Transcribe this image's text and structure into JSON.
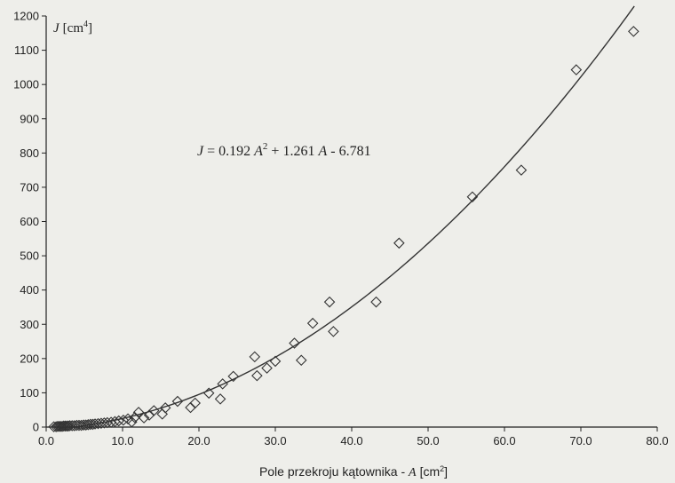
{
  "chart_data": {
    "type": "scatter",
    "title": "",
    "ylabel": {
      "symbol": "J",
      "unit": "[cm",
      "unit_sup": "4",
      "unit_close": "]"
    },
    "xlabel": {
      "text": "Pole przekroju kątownika - ",
      "symbol": "A",
      "unit": "[cm",
      "unit_sup": "2",
      "unit_close": "]"
    },
    "equation": {
      "lhs": "J",
      "eq1": " = 0.192 ",
      "a1": "A",
      "sup": "2",
      "mid": " + 1.261 ",
      "a2": "A",
      "tail": " - 6.781"
    },
    "fit": {
      "a": 0.192,
      "b": 1.261,
      "c": -6.781,
      "x_range": [
        1.0,
        77.0
      ]
    },
    "xlim": [
      0,
      80
    ],
    "ylim": [
      0,
      1200
    ],
    "xticks": [
      0,
      10,
      20,
      30,
      40,
      50,
      60,
      70,
      80
    ],
    "xtick_labels": [
      "0.0",
      "10.0",
      "20.0",
      "30.0",
      "40.0",
      "50.0",
      "60.0",
      "70.0",
      "80.0"
    ],
    "yticks": [
      0,
      100,
      200,
      300,
      400,
      500,
      600,
      700,
      800,
      900,
      1000,
      1100,
      1200
    ],
    "ytick_labels": [
      "0",
      "100",
      "200",
      "300",
      "400",
      "500",
      "600",
      "700",
      "800",
      "900",
      "1000",
      "1100",
      "1200"
    ],
    "grid": false,
    "marker": "diamond-open",
    "colors": {
      "line": "#333333",
      "marker": "#333333",
      "background": "#eeeeea"
    },
    "points": [
      [
        1.0,
        1
      ],
      [
        1.3,
        1
      ],
      [
        1.5,
        2
      ],
      [
        1.7,
        2
      ],
      [
        1.9,
        2
      ],
      [
        2.1,
        2
      ],
      [
        2.3,
        3
      ],
      [
        2.5,
        3
      ],
      [
        2.7,
        3
      ],
      [
        2.9,
        3
      ],
      [
        3.1,
        4
      ],
      [
        3.4,
        4
      ],
      [
        3.7,
        4
      ],
      [
        4.0,
        5
      ],
      [
        4.3,
        5
      ],
      [
        4.6,
        5
      ],
      [
        4.9,
        6
      ],
      [
        5.2,
        6
      ],
      [
        5.5,
        7
      ],
      [
        5.8,
        8
      ],
      [
        6.1,
        8
      ],
      [
        6.4,
        9
      ],
      [
        6.8,
        10
      ],
      [
        7.2,
        11
      ],
      [
        7.6,
        12
      ],
      [
        8.0,
        13
      ],
      [
        8.5,
        14
      ],
      [
        9.0,
        16
      ],
      [
        9.5,
        18
      ],
      [
        10.1,
        20
      ],
      [
        10.7,
        24
      ],
      [
        11.2,
        15
      ],
      [
        11.6,
        28
      ],
      [
        12.1,
        43
      ],
      [
        12.8,
        27
      ],
      [
        13.5,
        35
      ],
      [
        14.1,
        48
      ],
      [
        15.2,
        38
      ],
      [
        15.6,
        56
      ],
      [
        17.2,
        75
      ],
      [
        18.9,
        57
      ],
      [
        19.5,
        70
      ],
      [
        21.3,
        99
      ],
      [
        22.8,
        82
      ],
      [
        23.1,
        126
      ],
      [
        24.5,
        148
      ],
      [
        27.3,
        205
      ],
      [
        27.6,
        150
      ],
      [
        28.9,
        172
      ],
      [
        30.0,
        192
      ],
      [
        32.5,
        245
      ],
      [
        33.4,
        195
      ],
      [
        34.9,
        303
      ],
      [
        37.1,
        365
      ],
      [
        37.6,
        279
      ],
      [
        43.2,
        365
      ],
      [
        46.2,
        537
      ],
      [
        55.8,
        672
      ],
      [
        62.2,
        750
      ],
      [
        69.4,
        1043
      ],
      [
        76.9,
        1155
      ]
    ]
  }
}
